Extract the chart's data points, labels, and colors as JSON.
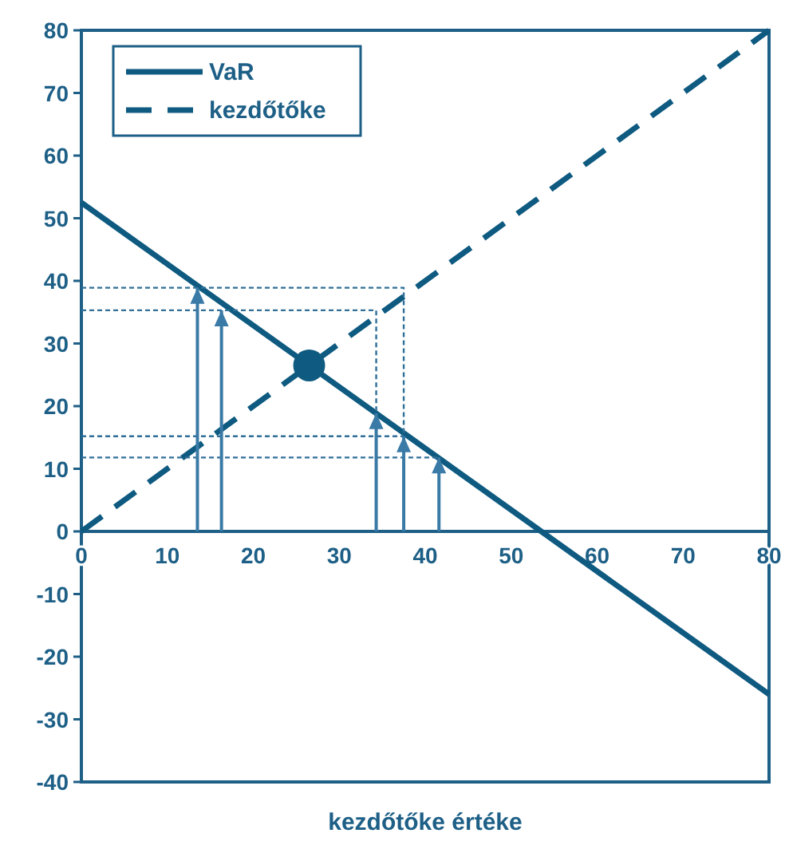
{
  "chart_data": {
    "type": "line",
    "xlabel": "kezdőtőke értéke",
    "xlim": [
      0,
      80
    ],
    "ylim": [
      -40,
      80
    ],
    "xticks": [
      0,
      10,
      20,
      30,
      40,
      50,
      60,
      70,
      80
    ],
    "yticks": [
      -40,
      -30,
      -20,
      -10,
      0,
      10,
      20,
      30,
      40,
      50,
      60,
      70,
      80
    ],
    "grid": false,
    "legend": "top left",
    "ref_lines": [
      {
        "axis": "y",
        "value": 0,
        "color": "#1d5f86",
        "line_style": "solid"
      }
    ],
    "series": [
      {
        "name": "VaR",
        "color": "#0e5a80",
        "x": [
          0,
          80
        ],
        "values": [
          52.5,
          -26
        ],
        "line_style": "solid",
        "marker": "none"
      },
      {
        "name": "kezdőtőke",
        "color": "#0e5a80",
        "x": [
          0,
          80
        ],
        "values": [
          0,
          80
        ],
        "line_style": "dashed",
        "marker": "none"
      },
      {
        "type": "scatter",
        "color": "#0e5a80",
        "x": [
          26.5
        ],
        "values": [
          26.5
        ],
        "marker": "circle"
      },
      {
        "color": "#2f6f98",
        "x": [
          0,
          37.5,
          37.5
        ],
        "values": [
          38.9,
          38.9,
          15.2
        ],
        "line_style": "dotted",
        "marker": "none"
      },
      {
        "color": "#2f6f98",
        "x": [
          0,
          34.3,
          34.3
        ],
        "values": [
          35.3,
          35.3,
          18.9
        ],
        "line_style": "dotted",
        "marker": "none"
      },
      {
        "color": "#2f6f98",
        "x": [
          0,
          37.5
        ],
        "values": [
          15.2,
          15.2
        ],
        "line_style": "dotted",
        "marker": "none"
      },
      {
        "color": "#2f6f98",
        "x": [
          0,
          41.6
        ],
        "values": [
          11.8,
          11.8
        ],
        "line_style": "dotted",
        "marker": "none"
      },
      {
        "color": "#3a7aa6",
        "x": [
          13.5,
          13.5
        ],
        "values": [
          0,
          38.9
        ],
        "line_style": "solid",
        "marker": "none"
      },
      {
        "color": "#3a7aa6",
        "x": [
          16.3,
          16.3
        ],
        "values": [
          0,
          35.3
        ],
        "line_style": "solid",
        "marker": "none"
      },
      {
        "color": "#3a7aa6",
        "x": [
          34.3,
          34.3
        ],
        "values": [
          0,
          18.9
        ],
        "line_style": "solid",
        "marker": "none"
      },
      {
        "color": "#3a7aa6",
        "x": [
          37.5,
          37.5
        ],
        "values": [
          0,
          15.2
        ],
        "line_style": "solid",
        "marker": "none"
      },
      {
        "color": "#3a7aa6",
        "x": [
          41.6,
          41.6
        ],
        "values": [
          0,
          11.8
        ],
        "line_style": "solid",
        "marker": "none"
      }
    ]
  }
}
